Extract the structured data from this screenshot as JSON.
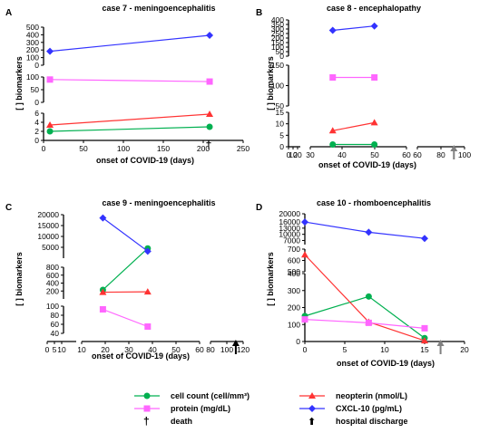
{
  "legend": {
    "cell": "cell count (cell/mm³)",
    "protein": "protein (mg/dL)",
    "neopterin": "neopterin (nmol/L)",
    "cxcl": "CXCL-10 (pg/mL)",
    "death_symbol": "†",
    "death": "death",
    "discharge_symbol": "⬆",
    "discharge": "hospital discharge"
  },
  "colors": {
    "cell": "#00b050",
    "protein": "#ff66ff",
    "neopterin": "#ff3333",
    "cxcl": "#3333ff",
    "discharge_arrow": "#808080"
  },
  "chart_data": [
    {
      "panel": "A",
      "type": "line",
      "title": "case 7 - meningoencephalitis",
      "xlabel": "onset of COVID-19 (days)",
      "ylabel": "[ ] biomarkers",
      "xlim": [
        0,
        250
      ],
      "xticks": [
        "0",
        "50",
        "100",
        "150",
        "200",
        "250"
      ],
      "y_segments": [
        [
          0,
          6
        ],
        [
          0,
          100
        ],
        [
          0,
          500
        ]
      ],
      "y_ticks": [
        [
          "0",
          "2",
          "4",
          "6"
        ],
        [
          "0",
          "50",
          "100"
        ],
        [
          "0",
          "100",
          "200",
          "300",
          "400",
          "500"
        ]
      ],
      "x": [
        8,
        208
      ],
      "series": [
        {
          "key": "cell",
          "values": [
            2,
            3
          ]
        },
        {
          "key": "neopterin",
          "values": [
            3.4,
            5.8
          ]
        },
        {
          "key": "protein",
          "values": [
            90,
            82
          ]
        },
        {
          "key": "cxcl",
          "values": [
            183,
            393
          ]
        }
      ],
      "death_day": 222
    },
    {
      "panel": "B",
      "type": "line",
      "title": "case 8 - encephalopathy",
      "xlabel": "onset of COVID-19 (days)",
      "ylabel": "[ ] biomarkers",
      "x_broken": true,
      "y_segments": [
        [
          0,
          15
        ],
        [
          0,
          150
        ],
        [
          0,
          400
        ]
      ],
      "y_ticks": [
        [
          "0",
          "5",
          "10",
          "15"
        ],
        [
          "50",
          "100",
          "150"
        ],
        [
          "0",
          "50",
          "100",
          "150",
          "200",
          "250",
          "300",
          "350",
          "400"
        ]
      ],
      "x": [
        37,
        50
      ],
      "series": [
        {
          "key": "cell",
          "values": [
            1,
            1
          ]
        },
        {
          "key": "neopterin",
          "values": [
            7,
            10.5
          ]
        },
        {
          "key": "protein",
          "values": [
            120,
            120
          ]
        },
        {
          "key": "cxcl",
          "values": [
            285,
            333
          ]
        }
      ],
      "discharge_day": 91
    },
    {
      "panel": "C",
      "type": "line",
      "title": "case 9 - meningoencephalitis",
      "xlabel": "onset of COVID-19 (days)",
      "ylabel": "[ ] biomarkers",
      "x_broken": true,
      "y_segments": [
        [
          40,
          100
        ],
        [
          0,
          800
        ],
        [
          0,
          20000
        ]
      ],
      "y_ticks": [
        [
          "40",
          "60",
          "80",
          "100"
        ],
        [
          "200",
          "400",
          "600",
          "800"
        ],
        [
          "5000",
          "10000",
          "15000",
          "20000"
        ]
      ],
      "x": [
        19,
        38
      ],
      "series": [
        {
          "key": "cell",
          "values": [
            230,
            4500
          ]
        },
        {
          "key": "neopterin",
          "values": [
            170,
            180
          ]
        },
        {
          "key": "protein",
          "values": [
            93,
            55
          ]
        },
        {
          "key": "cxcl",
          "values": [
            18500,
            3200
          ]
        }
      ],
      "discharge_day": 111
    },
    {
      "panel": "D",
      "type": "line",
      "title": "case 10 - rhomboencephalitis",
      "xlabel": "onset of COVID-19 (days)",
      "ylabel": "[ ] biomarkers",
      "xlim": [
        0,
        20
      ],
      "xticks": [
        "0",
        "5",
        "10",
        "15",
        "20"
      ],
      "y_segments": [
        [
          0,
          400
        ],
        [
          500,
          700
        ],
        [
          5000,
          20000
        ]
      ],
      "y_ticks": [
        [
          "0",
          "100",
          "200",
          "300",
          "400"
        ],
        [
          "500",
          "600",
          "700"
        ],
        [
          "7000",
          "10000",
          "13000",
          "16000",
          "20000"
        ]
      ],
      "x": [
        0,
        8,
        15
      ],
      "series": [
        {
          "key": "cell",
          "values": [
            150,
            265,
            20
          ]
        },
        {
          "key": "neopterin",
          "values": [
            650,
            115,
            5
          ]
        },
        {
          "key": "protein",
          "values": [
            130,
            110,
            78
          ]
        },
        {
          "key": "cxcl",
          "values": [
            16000,
            11000,
            8000
          ]
        }
      ],
      "discharge_day": 17
    }
  ]
}
